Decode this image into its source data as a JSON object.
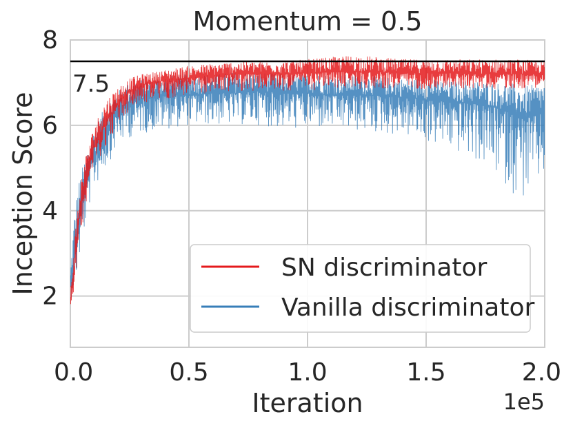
{
  "chart_data": {
    "type": "line",
    "title": "Momentum = 0.5",
    "xlabel": "Iteration",
    "ylabel": "Inception Score",
    "x_offset_text": "1e5",
    "xlim": [
      0.0,
      2.0
    ],
    "ylim": [
      0.8,
      8.0
    ],
    "xticks": [
      0.0,
      0.5,
      1.0,
      1.5,
      2.0
    ],
    "xtick_labels": [
      "0.0",
      "0.5",
      "1.0",
      "1.5",
      "2.0"
    ],
    "yticks": [
      2,
      4,
      6,
      8
    ],
    "ytick_labels": [
      "2",
      "4",
      "6",
      "8"
    ],
    "grid": true,
    "hline": {
      "y": 7.5,
      "label": "7.5",
      "color": "#000000"
    },
    "legend_position": "bottom-right",
    "series": [
      {
        "name": "SN discriminator",
        "color": "#e41a1c",
        "x": [
          0.0,
          0.02,
          0.04,
          0.06,
          0.08,
          0.1,
          0.15,
          0.2,
          0.25,
          0.3,
          0.4,
          0.5,
          0.6,
          0.7,
          0.8,
          0.9,
          1.0,
          1.1,
          1.2,
          1.3,
          1.4,
          1.5,
          1.6,
          1.7,
          1.8,
          1.9,
          2.0
        ],
        "mean": [
          1.9,
          2.8,
          3.9,
          4.6,
          5.1,
          5.5,
          6.1,
          6.5,
          6.8,
          6.95,
          7.05,
          7.1,
          7.15,
          7.2,
          7.2,
          7.2,
          7.22,
          7.25,
          7.25,
          7.25,
          7.22,
          7.22,
          7.22,
          7.2,
          7.2,
          7.2,
          7.2
        ],
        "low": [
          1.7,
          2.3,
          3.2,
          4.0,
          4.6,
          5.0,
          5.5,
          6.0,
          6.3,
          6.5,
          6.6,
          6.7,
          6.75,
          6.8,
          6.8,
          6.8,
          6.8,
          6.85,
          6.85,
          6.85,
          6.85,
          6.85,
          6.85,
          6.85,
          6.85,
          6.85,
          6.9
        ],
        "high": [
          2.1,
          3.5,
          4.6,
          5.2,
          5.6,
          6.0,
          6.6,
          6.9,
          7.1,
          7.2,
          7.3,
          7.4,
          7.45,
          7.5,
          7.5,
          7.5,
          7.55,
          7.6,
          7.65,
          7.6,
          7.55,
          7.55,
          7.55,
          7.55,
          7.55,
          7.55,
          7.5
        ]
      },
      {
        "name": "Vanilla discriminator",
        "color": "#377eb8",
        "x": [
          0.0,
          0.02,
          0.04,
          0.06,
          0.08,
          0.1,
          0.15,
          0.2,
          0.25,
          0.3,
          0.4,
          0.5,
          0.6,
          0.7,
          0.8,
          0.9,
          1.0,
          1.1,
          1.2,
          1.3,
          1.4,
          1.5,
          1.6,
          1.7,
          1.8,
          1.85,
          1.9,
          1.95,
          2.0
        ],
        "mean": [
          2.2,
          3.0,
          3.8,
          4.4,
          4.9,
          5.3,
          5.9,
          6.3,
          6.5,
          6.6,
          6.7,
          6.7,
          6.75,
          6.75,
          6.8,
          6.75,
          6.75,
          6.7,
          6.7,
          6.7,
          6.65,
          6.6,
          6.55,
          6.5,
          6.4,
          6.3,
          6.2,
          6.2,
          6.3
        ],
        "low": [
          1.9,
          2.2,
          2.9,
          3.5,
          4.1,
          4.5,
          5.0,
          5.5,
          5.7,
          5.8,
          5.9,
          6.0,
          6.0,
          6.0,
          6.0,
          5.9,
          5.9,
          5.9,
          5.85,
          5.8,
          5.75,
          5.6,
          5.4,
          5.2,
          4.8,
          4.5,
          4.2,
          4.4,
          4.8
        ],
        "high": [
          2.6,
          4.2,
          4.8,
          5.2,
          5.6,
          5.9,
          6.5,
          6.8,
          7.0,
          7.1,
          7.15,
          7.2,
          7.2,
          7.25,
          7.25,
          7.2,
          7.2,
          7.2,
          7.2,
          7.15,
          7.1,
          7.1,
          7.05,
          7.05,
          7.0,
          7.0,
          6.95,
          6.95,
          7.0
        ]
      }
    ]
  }
}
